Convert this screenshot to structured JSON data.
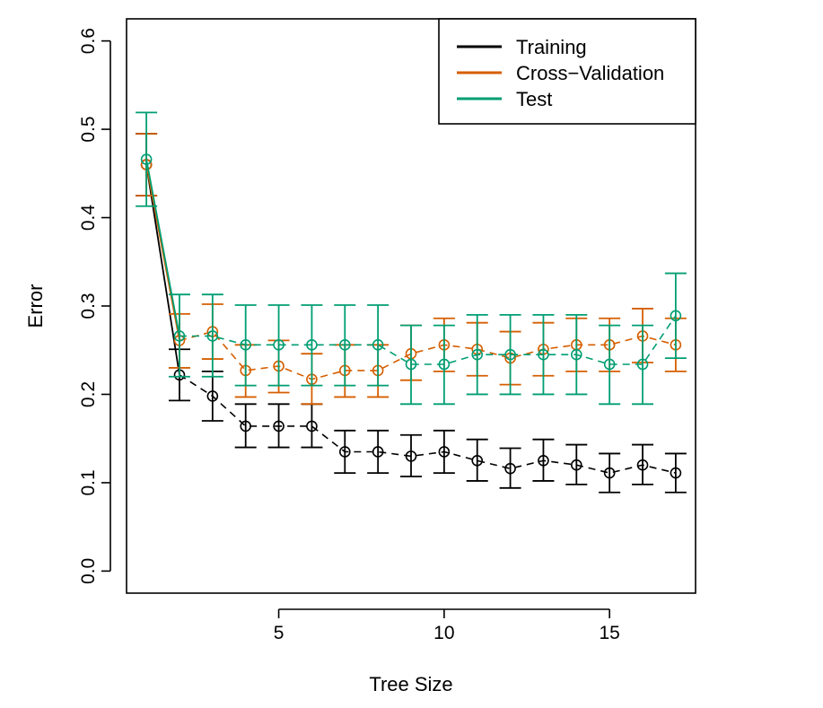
{
  "chart_data": {
    "type": "line",
    "xlabel": "Tree Size",
    "ylabel": "Error",
    "xlim": [
      0.4,
      17.6
    ],
    "ylim": [
      -0.025,
      0.625
    ],
    "xticks": [
      5,
      10,
      15
    ],
    "yticks": [
      0.0,
      0.1,
      0.2,
      0.3,
      0.4,
      0.5,
      0.6
    ],
    "ytick_labels": [
      "0.0",
      "0.1",
      "0.2",
      "0.3",
      "0.4",
      "0.5",
      "0.6"
    ],
    "xtick_labels": [
      "5",
      "10",
      "15"
    ],
    "x": [
      1,
      2,
      3,
      4,
      5,
      6,
      7,
      8,
      9,
      10,
      11,
      12,
      13,
      14,
      15,
      16,
      17
    ],
    "legend": {
      "position": "top-right",
      "entries": [
        "Training",
        "Cross−Validation",
        "Test"
      ]
    },
    "series": [
      {
        "name": "Training",
        "color": "#000000",
        "values": [
          0.46,
          0.222,
          0.198,
          0.164,
          0.164,
          0.164,
          0.135,
          0.135,
          0.13,
          0.135,
          0.125,
          0.116,
          0.125,
          0.12,
          0.111,
          0.12,
          0.111
        ],
        "lower": [
          0.425,
          0.193,
          0.17,
          0.14,
          0.14,
          0.14,
          0.111,
          0.111,
          0.107,
          0.111,
          0.102,
          0.094,
          0.102,
          0.098,
          0.089,
          0.098,
          0.089
        ],
        "upper": [
          0.495,
          0.251,
          0.226,
          0.189,
          0.189,
          0.189,
          0.159,
          0.159,
          0.154,
          0.159,
          0.149,
          0.139,
          0.149,
          0.143,
          0.133,
          0.143,
          0.133
        ]
      },
      {
        "name": "Cross−Validation",
        "color": "#D55E00",
        "values": [
          0.46,
          0.261,
          0.271,
          0.227,
          0.232,
          0.217,
          0.227,
          0.227,
          0.246,
          0.256,
          0.251,
          0.241,
          0.251,
          0.256,
          0.256,
          0.266,
          0.256
        ],
        "lower": [
          0.425,
          0.23,
          0.24,
          0.197,
          0.202,
          0.189,
          0.197,
          0.197,
          0.216,
          0.226,
          0.221,
          0.211,
          0.221,
          0.226,
          0.226,
          0.236,
          0.226
        ],
        "upper": [
          0.495,
          0.291,
          0.302,
          0.256,
          0.261,
          0.246,
          0.256,
          0.256,
          0.278,
          0.286,
          0.281,
          0.271,
          0.281,
          0.286,
          0.286,
          0.297,
          0.286
        ]
      },
      {
        "name": "Test",
        "color": "#009E73",
        "values": [
          0.466,
          0.266,
          0.266,
          0.256,
          0.256,
          0.256,
          0.256,
          0.256,
          0.234,
          0.234,
          0.245,
          0.245,
          0.245,
          0.245,
          0.234,
          0.234,
          0.289
        ],
        "lower": [
          0.413,
          0.22,
          0.22,
          0.21,
          0.21,
          0.21,
          0.21,
          0.21,
          0.189,
          0.189,
          0.2,
          0.2,
          0.2,
          0.2,
          0.189,
          0.189,
          0.241
        ],
        "upper": [
          0.519,
          0.313,
          0.313,
          0.301,
          0.301,
          0.301,
          0.301,
          0.301,
          0.278,
          0.278,
          0.29,
          0.29,
          0.29,
          0.29,
          0.278,
          0.278,
          0.337
        ]
      }
    ]
  }
}
